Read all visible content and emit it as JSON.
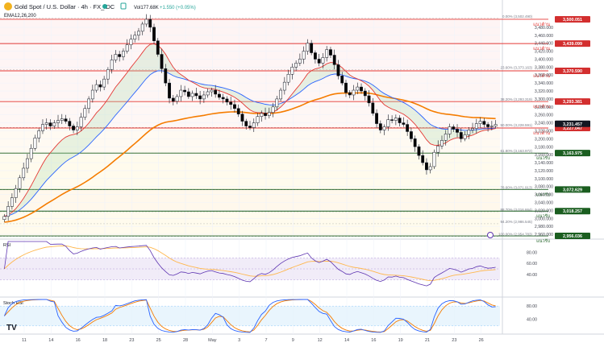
{
  "header": {
    "symbol": "Gold Spot / U.S. Dollar · 4h · FX_IDC",
    "volume": "Vol177.68K",
    "change": "+1.550 (+0.05%)",
    "indicator": "EMA12,26,200"
  },
  "colors": {
    "up": "#26a69a",
    "down": "#ef5350",
    "candle_up_body": "#ffffff",
    "candle_down_body": "#000000",
    "ema_fast": "#e53935",
    "ema_slow": "#2962ff",
    "ema_long": "#f57c00",
    "resistance": "#e53935",
    "support": "#1b5e20",
    "rsi_line": "#5e35b1",
    "rsi_ma": "#ffb74d",
    "stoch_k": "#2962ff",
    "stoch_d": "#f57c00"
  },
  "price_axis": {
    "ticks": [
      "3,480.000",
      "3,460.000",
      "3,440.000",
      "3,420.000",
      "3,400.000",
      "3,380.000",
      "3,360.000",
      "3,340.000",
      "3,320.000",
      "3,300.000",
      "3,280.000",
      "3,260.000",
      "3,240.000",
      "3,220.000",
      "3,200.000",
      "3,180.000",
      "3,160.000",
      "3,140.000",
      "3,120.000",
      "3,100.000",
      "3,080.000",
      "3,060.000",
      "3,040.000",
      "3,020.000",
      "3,000.000",
      "2,980.000",
      "2,960.000"
    ],
    "range": [
      2950,
      3500
    ]
  },
  "levels": [
    {
      "price": 3500.051,
      "label": "3,500.051",
      "kind": "resistance",
      "note": "แนวต้าน"
    },
    {
      "price": 3439.099,
      "label": "3,439.099",
      "kind": "resistance",
      "note": "แนวต้าน"
    },
    {
      "price": 3370.59,
      "label": "3,370.590",
      "kind": "resistance",
      "note": "แนวต้าน"
    },
    {
      "price": 3293.381,
      "label": "3,293.381",
      "kind": "resistance",
      "note": "แนวต้าน"
    },
    {
      "price": 3227.047,
      "label": "3,227.047",
      "kind": "resistance",
      "note": "แนวต้าน"
    },
    {
      "price": 3163.975,
      "label": "3,163.975",
      "kind": "support",
      "note": "แนวรับ"
    },
    {
      "price": 3072.629,
      "label": "3,072.629",
      "kind": "support",
      "note": "แนวรับ"
    },
    {
      "price": 3018.257,
      "label": "3,018.257",
      "kind": "support",
      "note": "แนวรับ"
    },
    {
      "price": 2956.036,
      "label": "2,956.036",
      "kind": "support",
      "note": "แนวรับ"
    }
  ],
  "current_price": {
    "price": 3231.457,
    "label": "3,231.457"
  },
  "fib_levels": [
    {
      "price": 3502.49,
      "label": "0.00% (3,502.490)"
    },
    {
      "price": 3373.163,
      "label": "23.60% (3,373.163)"
    },
    {
      "price": 3293.319,
      "label": "38.20% (3,293.319)"
    },
    {
      "price": 3228.591,
      "label": "50.00% (3,228.591)"
    },
    {
      "price": 3163.972,
      "label": "61.80% (3,163.972)"
    },
    {
      "price": 3071.913,
      "label": "78.60% (3,071.913)"
    },
    {
      "price": 3016.664,
      "label": "88.70% (3,016.664)"
    },
    {
      "price": 2986.545,
      "label": "94.20% (2,986.545)"
    },
    {
      "price": 2954.783,
      "label": "100.00% (2,954.783)"
    }
  ],
  "rsi": {
    "label": "RSI",
    "ticks": [
      "80.00",
      "60.00",
      "40.00"
    ]
  },
  "stoch": {
    "label": "Stoch RSI",
    "ticks": [
      "80.00",
      "40.00"
    ]
  },
  "time_axis": {
    "ticks": [
      "11",
      "14",
      "16",
      "18",
      "23",
      "25",
      "28",
      "May",
      "3",
      "7",
      "9",
      "12",
      "14",
      "16",
      "19",
      "21",
      "23",
      "26"
    ]
  },
  "tv_logo": "TV",
  "chart_data": {
    "type": "candlestick",
    "title": "Gold Spot / U.S. Dollar · 4h · FX_IDC",
    "ylim": [
      2950,
      3500
    ],
    "closes": [
      3005,
      3030,
      3052,
      3075,
      3102,
      3126,
      3150,
      3176,
      3202,
      3220,
      3236,
      3240,
      3232,
      3240,
      3246,
      3250,
      3244,
      3232,
      3222,
      3230,
      3254,
      3276,
      3300,
      3322,
      3336,
      3330,
      3350,
      3374,
      3398,
      3412,
      3406,
      3420,
      3436,
      3450,
      3460,
      3470,
      3488,
      3500,
      3480,
      3446,
      3412,
      3376,
      3340,
      3302,
      3294,
      3306,
      3322,
      3318,
      3306,
      3314,
      3308,
      3300,
      3310,
      3318,
      3322,
      3312,
      3304,
      3300,
      3292,
      3286,
      3276,
      3262,
      3244,
      3232,
      3228,
      3240,
      3256,
      3264,
      3258,
      3266,
      3280,
      3300,
      3322,
      3342,
      3362,
      3380,
      3390,
      3400,
      3420,
      3440,
      3416,
      3400,
      3390,
      3404,
      3424,
      3410,
      3386,
      3358,
      3340,
      3316,
      3310,
      3322,
      3330,
      3320,
      3308,
      3290,
      3264,
      3238,
      3222,
      3230,
      3248,
      3246,
      3252,
      3240,
      3236,
      3218,
      3200,
      3180,
      3158,
      3140,
      3122,
      3130,
      3166,
      3182,
      3196,
      3212,
      3230,
      3224,
      3216,
      3200,
      3210,
      3222,
      3226,
      3238,
      3244,
      3236,
      3230,
      3232,
      3236
    ]
  }
}
